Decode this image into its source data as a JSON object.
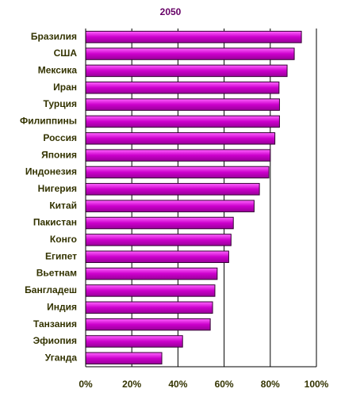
{
  "chart_data": {
    "type": "hbar",
    "title": "2050",
    "categories": [
      "Бразилия",
      "США",
      "Мексика",
      "Иран",
      "Турция",
      "Филиппины",
      "Россия",
      "Япония",
      "Индонезия",
      "Нигерия",
      "Китай",
      "Пакистан",
      "Конго",
      "Египет",
      "Вьетнам",
      "Бангладеш",
      "Индия",
      "Танзания",
      "Эфиопия",
      "Уганда"
    ],
    "values": [
      93.5,
      90.4,
      87.3,
      83.8,
      84,
      84,
      82,
      80,
      79.4,
      75.3,
      73,
      64,
      63,
      62,
      57,
      56,
      55,
      54,
      42,
      33
    ],
    "color": "#cc00cc",
    "xlim": [
      0,
      100
    ],
    "xticks": [
      {
        "value": 0,
        "label": "0%"
      },
      {
        "value": 20,
        "label": "20%"
      },
      {
        "value": 40,
        "label": "40%"
      },
      {
        "value": 60,
        "label": "60%"
      },
      {
        "value": 80,
        "label": "80%"
      },
      {
        "value": 100,
        "label": "100%"
      }
    ],
    "grid": true
  }
}
